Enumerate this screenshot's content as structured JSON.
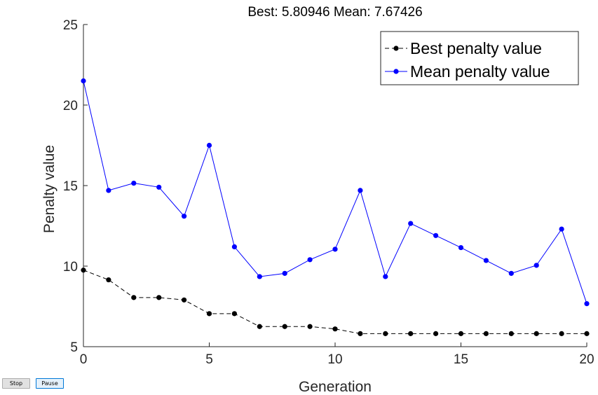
{
  "chart_data": {
    "type": "line",
    "title": "Best: 5.80946 Mean: 7.67426",
    "xlabel": "Generation",
    "ylabel": "Penalty value",
    "xlim": [
      0,
      20
    ],
    "ylim": [
      5,
      25
    ],
    "xticks": [
      "0",
      "5",
      "10",
      "15",
      "20"
    ],
    "yticks": [
      "5",
      "10",
      "15",
      "20",
      "25"
    ],
    "grid": false,
    "legend_position": "top-right",
    "x": [
      0,
      1,
      2,
      3,
      4,
      5,
      6,
      7,
      8,
      9,
      10,
      11,
      12,
      13,
      14,
      15,
      16,
      17,
      18,
      19,
      20
    ],
    "series": [
      {
        "name": "Best penalty value",
        "color": "#000000",
        "line_style": "dashed",
        "marker": "dot",
        "values": [
          9.75,
          9.15,
          8.05,
          8.05,
          7.9,
          7.05,
          7.05,
          6.25,
          6.25,
          6.25,
          6.1,
          5.81,
          5.81,
          5.81,
          5.81,
          5.81,
          5.81,
          5.81,
          5.81,
          5.81,
          5.81
        ]
      },
      {
        "name": "Mean penalty value",
        "color": "#0000ff",
        "line_style": "solid",
        "marker": "dot",
        "values": [
          21.5,
          14.7,
          15.15,
          14.9,
          13.1,
          17.5,
          11.2,
          9.35,
          9.55,
          10.4,
          11.05,
          14.7,
          9.35,
          12.65,
          11.9,
          11.15,
          10.35,
          9.55,
          10.05,
          12.3,
          7.67
        ]
      }
    ]
  },
  "controls": {
    "stop_label": "Stop",
    "pause_label": "Pause"
  }
}
